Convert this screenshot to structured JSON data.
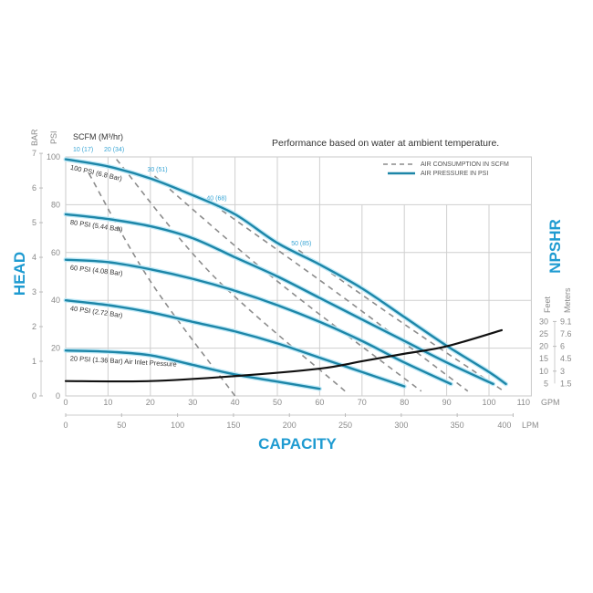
{
  "chart_data": {
    "type": "line",
    "note": "Performance based on water at ambient temperature.",
    "xlabel": "CAPACITY",
    "ylabel": "HEAD",
    "y2label": "NPSHR",
    "x_unit_gpm": "GPM",
    "x_unit_lpm": "LPM",
    "y_unit_psi": "PSI",
    "y_unit_bar": "BAR",
    "y2_unit_feet": "Feet",
    "y2_unit_meters": "Meters",
    "scfm_header": "SCFM (M³/hr)",
    "xlim_gpm": [
      0,
      110
    ],
    "ylim_psi": [
      0,
      100
    ],
    "grid": true,
    "legend_position": "top-right",
    "legend": [
      "AIR CONSUMPTION IN SCFM",
      "AIR PRESSURE IN PSI"
    ],
    "gpm_ticks": [
      "0",
      "10",
      "20",
      "30",
      "40",
      "50",
      "60",
      "70",
      "80",
      "90",
      "100",
      "110"
    ],
    "lpm_ticks": [
      "0",
      "50",
      "100",
      "150",
      "200",
      "250",
      "300",
      "350",
      "400"
    ],
    "psi_ticks": [
      "0",
      "20",
      "40",
      "60",
      "80",
      "100"
    ],
    "bar_ticks": [
      "0",
      "1",
      "2",
      "3",
      "4",
      "5",
      "6",
      "7"
    ],
    "feet_ticks": [
      "5",
      "10",
      "15",
      "20",
      "25",
      "30"
    ],
    "meter_ticks": [
      "1.5",
      "3",
      "4.5",
      "6",
      "7.6",
      "9.1"
    ],
    "colors": {
      "pressure": "#1d86a8",
      "air": "#8c8c8c",
      "npshr": "#111111",
      "accent": "#1f9bd1"
    },
    "pressure_series": [
      {
        "name": "100 PSI (6.8 Bar)",
        "points": [
          [
            0,
            99
          ],
          [
            10,
            96
          ],
          [
            20,
            91
          ],
          [
            30,
            84
          ],
          [
            40,
            76
          ],
          [
            50,
            64
          ],
          [
            60,
            55
          ],
          [
            70,
            45
          ],
          [
            80,
            33
          ],
          [
            90,
            21
          ],
          [
            100,
            10
          ],
          [
            104,
            5
          ]
        ]
      },
      {
        "name": "80 PSI (5.44 Bar)",
        "points": [
          [
            0,
            76
          ],
          [
            10,
            74
          ],
          [
            20,
            71
          ],
          [
            30,
            66
          ],
          [
            40,
            58
          ],
          [
            50,
            50
          ],
          [
            60,
            41
          ],
          [
            70,
            32
          ],
          [
            80,
            23
          ],
          [
            90,
            14
          ],
          [
            101,
            5
          ]
        ]
      },
      {
        "name": "60 PSI (4.08 Bar)",
        "points": [
          [
            0,
            57
          ],
          [
            10,
            56
          ],
          [
            20,
            53
          ],
          [
            30,
            49
          ],
          [
            40,
            44
          ],
          [
            50,
            38
          ],
          [
            60,
            31
          ],
          [
            70,
            23
          ],
          [
            80,
            14
          ],
          [
            91,
            5
          ]
        ]
      },
      {
        "name": "40 PSI (2.72 Bar)",
        "points": [
          [
            0,
            40
          ],
          [
            10,
            38
          ],
          [
            20,
            35
          ],
          [
            30,
            31
          ],
          [
            40,
            27
          ],
          [
            50,
            22
          ],
          [
            60,
            16
          ],
          [
            70,
            10
          ],
          [
            80,
            4
          ]
        ]
      },
      {
        "name": "20 PSI (1.36 Bar) Air Inlet Pressure",
        "points": [
          [
            0,
            19
          ],
          [
            10,
            18.5
          ],
          [
            20,
            17
          ],
          [
            30,
            13
          ],
          [
            40,
            9
          ],
          [
            50,
            6
          ],
          [
            60,
            3
          ]
        ]
      }
    ],
    "air_series": [
      {
        "name": "10 (17)",
        "points": [
          [
            5.5,
            93
          ],
          [
            20,
            48
          ],
          [
            40,
            0
          ]
        ]
      },
      {
        "name": "20 (34)",
        "points": [
          [
            12,
            99
          ],
          [
            35,
            50
          ],
          [
            66,
            2
          ]
        ]
      },
      {
        "name": "30 (51)",
        "points": [
          [
            21,
            92
          ],
          [
            50,
            48
          ],
          [
            84,
            2
          ]
        ]
      },
      {
        "name": "40 (68)",
        "points": [
          [
            35,
            80
          ],
          [
            65,
            42
          ],
          [
            95,
            2
          ]
        ]
      },
      {
        "name": "50 (85)",
        "points": [
          [
            55,
            61
          ],
          [
            80,
            30
          ],
          [
            103.5,
            2
          ]
        ]
      }
    ],
    "npshr_series": {
      "unit": "feet",
      "points": [
        [
          0,
          6
        ],
        [
          20,
          6
        ],
        [
          40,
          8
        ],
        [
          60,
          11
        ],
        [
          70,
          14
        ],
        [
          80,
          17
        ],
        [
          90,
          20
        ],
        [
          103,
          26.5
        ]
      ]
    }
  }
}
